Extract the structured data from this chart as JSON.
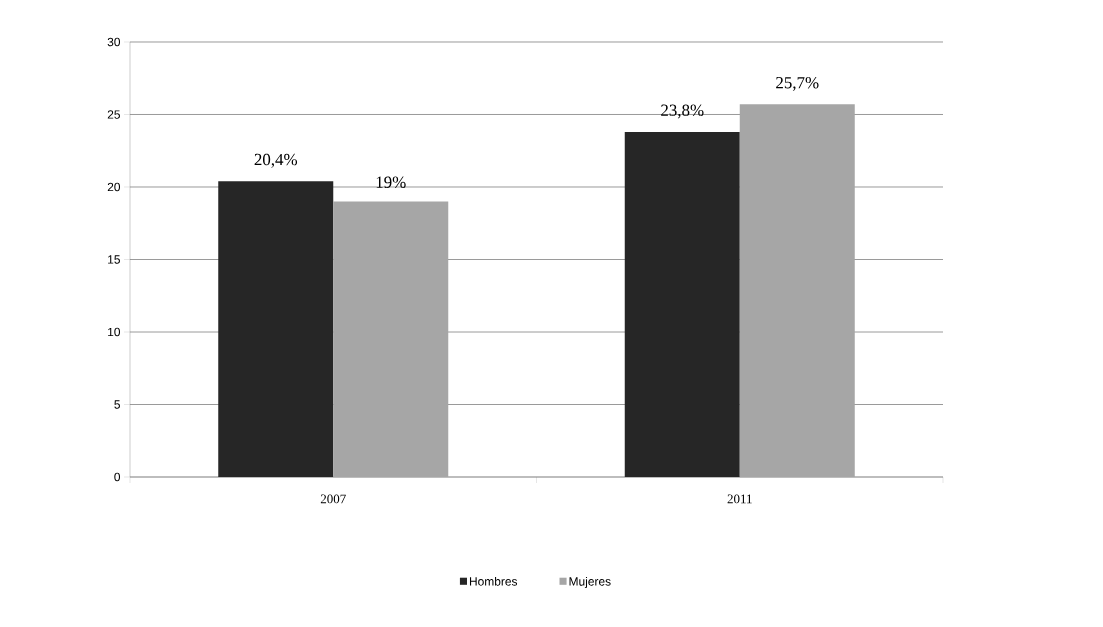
{
  "chart_data": {
    "type": "bar",
    "categories": [
      "2007",
      "2011"
    ],
    "series": [
      {
        "name": "Hombres",
        "color": "#262626",
        "values": [
          20.4,
          23.8
        ],
        "value_labels": [
          "20,4%",
          "23,8%"
        ]
      },
      {
        "name": "Mujeres",
        "color": "#a6a6a6",
        "values": [
          19,
          25.7
        ],
        "value_labels": [
          "19%",
          "25,7%"
        ]
      }
    ],
    "ylim": [
      0,
      30
    ],
    "yticks": [
      0,
      5,
      10,
      15,
      20,
      25,
      30
    ],
    "grid": "y",
    "legend": "bottom"
  }
}
